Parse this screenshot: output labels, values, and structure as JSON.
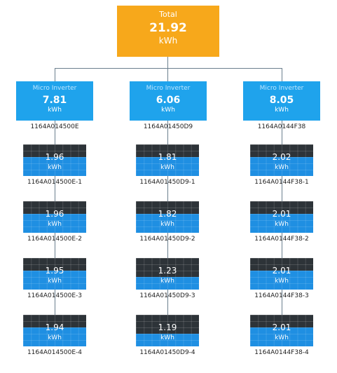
{
  "total": {
    "label": "Total",
    "value": "21.92",
    "unit": "kWh"
  },
  "inverters": [
    {
      "label": "Micro Inverter",
      "value": "7.81",
      "unit": "kWh",
      "serial": "1164A014500E",
      "panels": [
        {
          "value": "1.96",
          "unit": "kWh",
          "serial": "1164A014500E-1",
          "level": 0.6
        },
        {
          "value": "1.96",
          "unit": "kWh",
          "serial": "1164A014500E-2",
          "level": 0.6
        },
        {
          "value": "1.95",
          "unit": "kWh",
          "serial": "1164A014500E-3",
          "level": 0.6
        },
        {
          "value": "1.94",
          "unit": "kWh",
          "serial": "1164A014500E-4",
          "level": 0.6
        }
      ]
    },
    {
      "label": "Micro Inverter",
      "value": "6.06",
      "unit": "kWh",
      "serial": "1164A01450D9",
      "panels": [
        {
          "value": "1.81",
          "unit": "kWh",
          "serial": "1164A01450D9-1",
          "level": 0.6
        },
        {
          "value": "1.82",
          "unit": "kWh",
          "serial": "1164A01450D9-2",
          "level": 0.6
        },
        {
          "value": "1.23",
          "unit": "kWh",
          "serial": "1164A01450D9-3",
          "level": 0.4
        },
        {
          "value": "1.19",
          "unit": "kWh",
          "serial": "1164A01450D9-4",
          "level": 0.4
        }
      ]
    },
    {
      "label": "Micro Inverter",
      "value": "8.05",
      "unit": "kWh",
      "serial": "1164A0144F38",
      "panels": [
        {
          "value": "2.02",
          "unit": "kWh",
          "serial": "1164A0144F38-1",
          "level": 0.6
        },
        {
          "value": "2.01",
          "unit": "kWh",
          "serial": "1164A0144F38-2",
          "level": 0.6
        },
        {
          "value": "2.01",
          "unit": "kWh",
          "serial": "1164A0144F38-3",
          "level": 0.6
        },
        {
          "value": "2.01",
          "unit": "kWh",
          "serial": "1164A0144F38-4",
          "level": 0.6
        }
      ]
    }
  ],
  "colors": {
    "total": "#f7a81b",
    "inverter": "#1fa3ec",
    "panel_fill": "#1f8fe2",
    "panel_dark": "#2d3338",
    "connector": "#6b7f8e"
  }
}
